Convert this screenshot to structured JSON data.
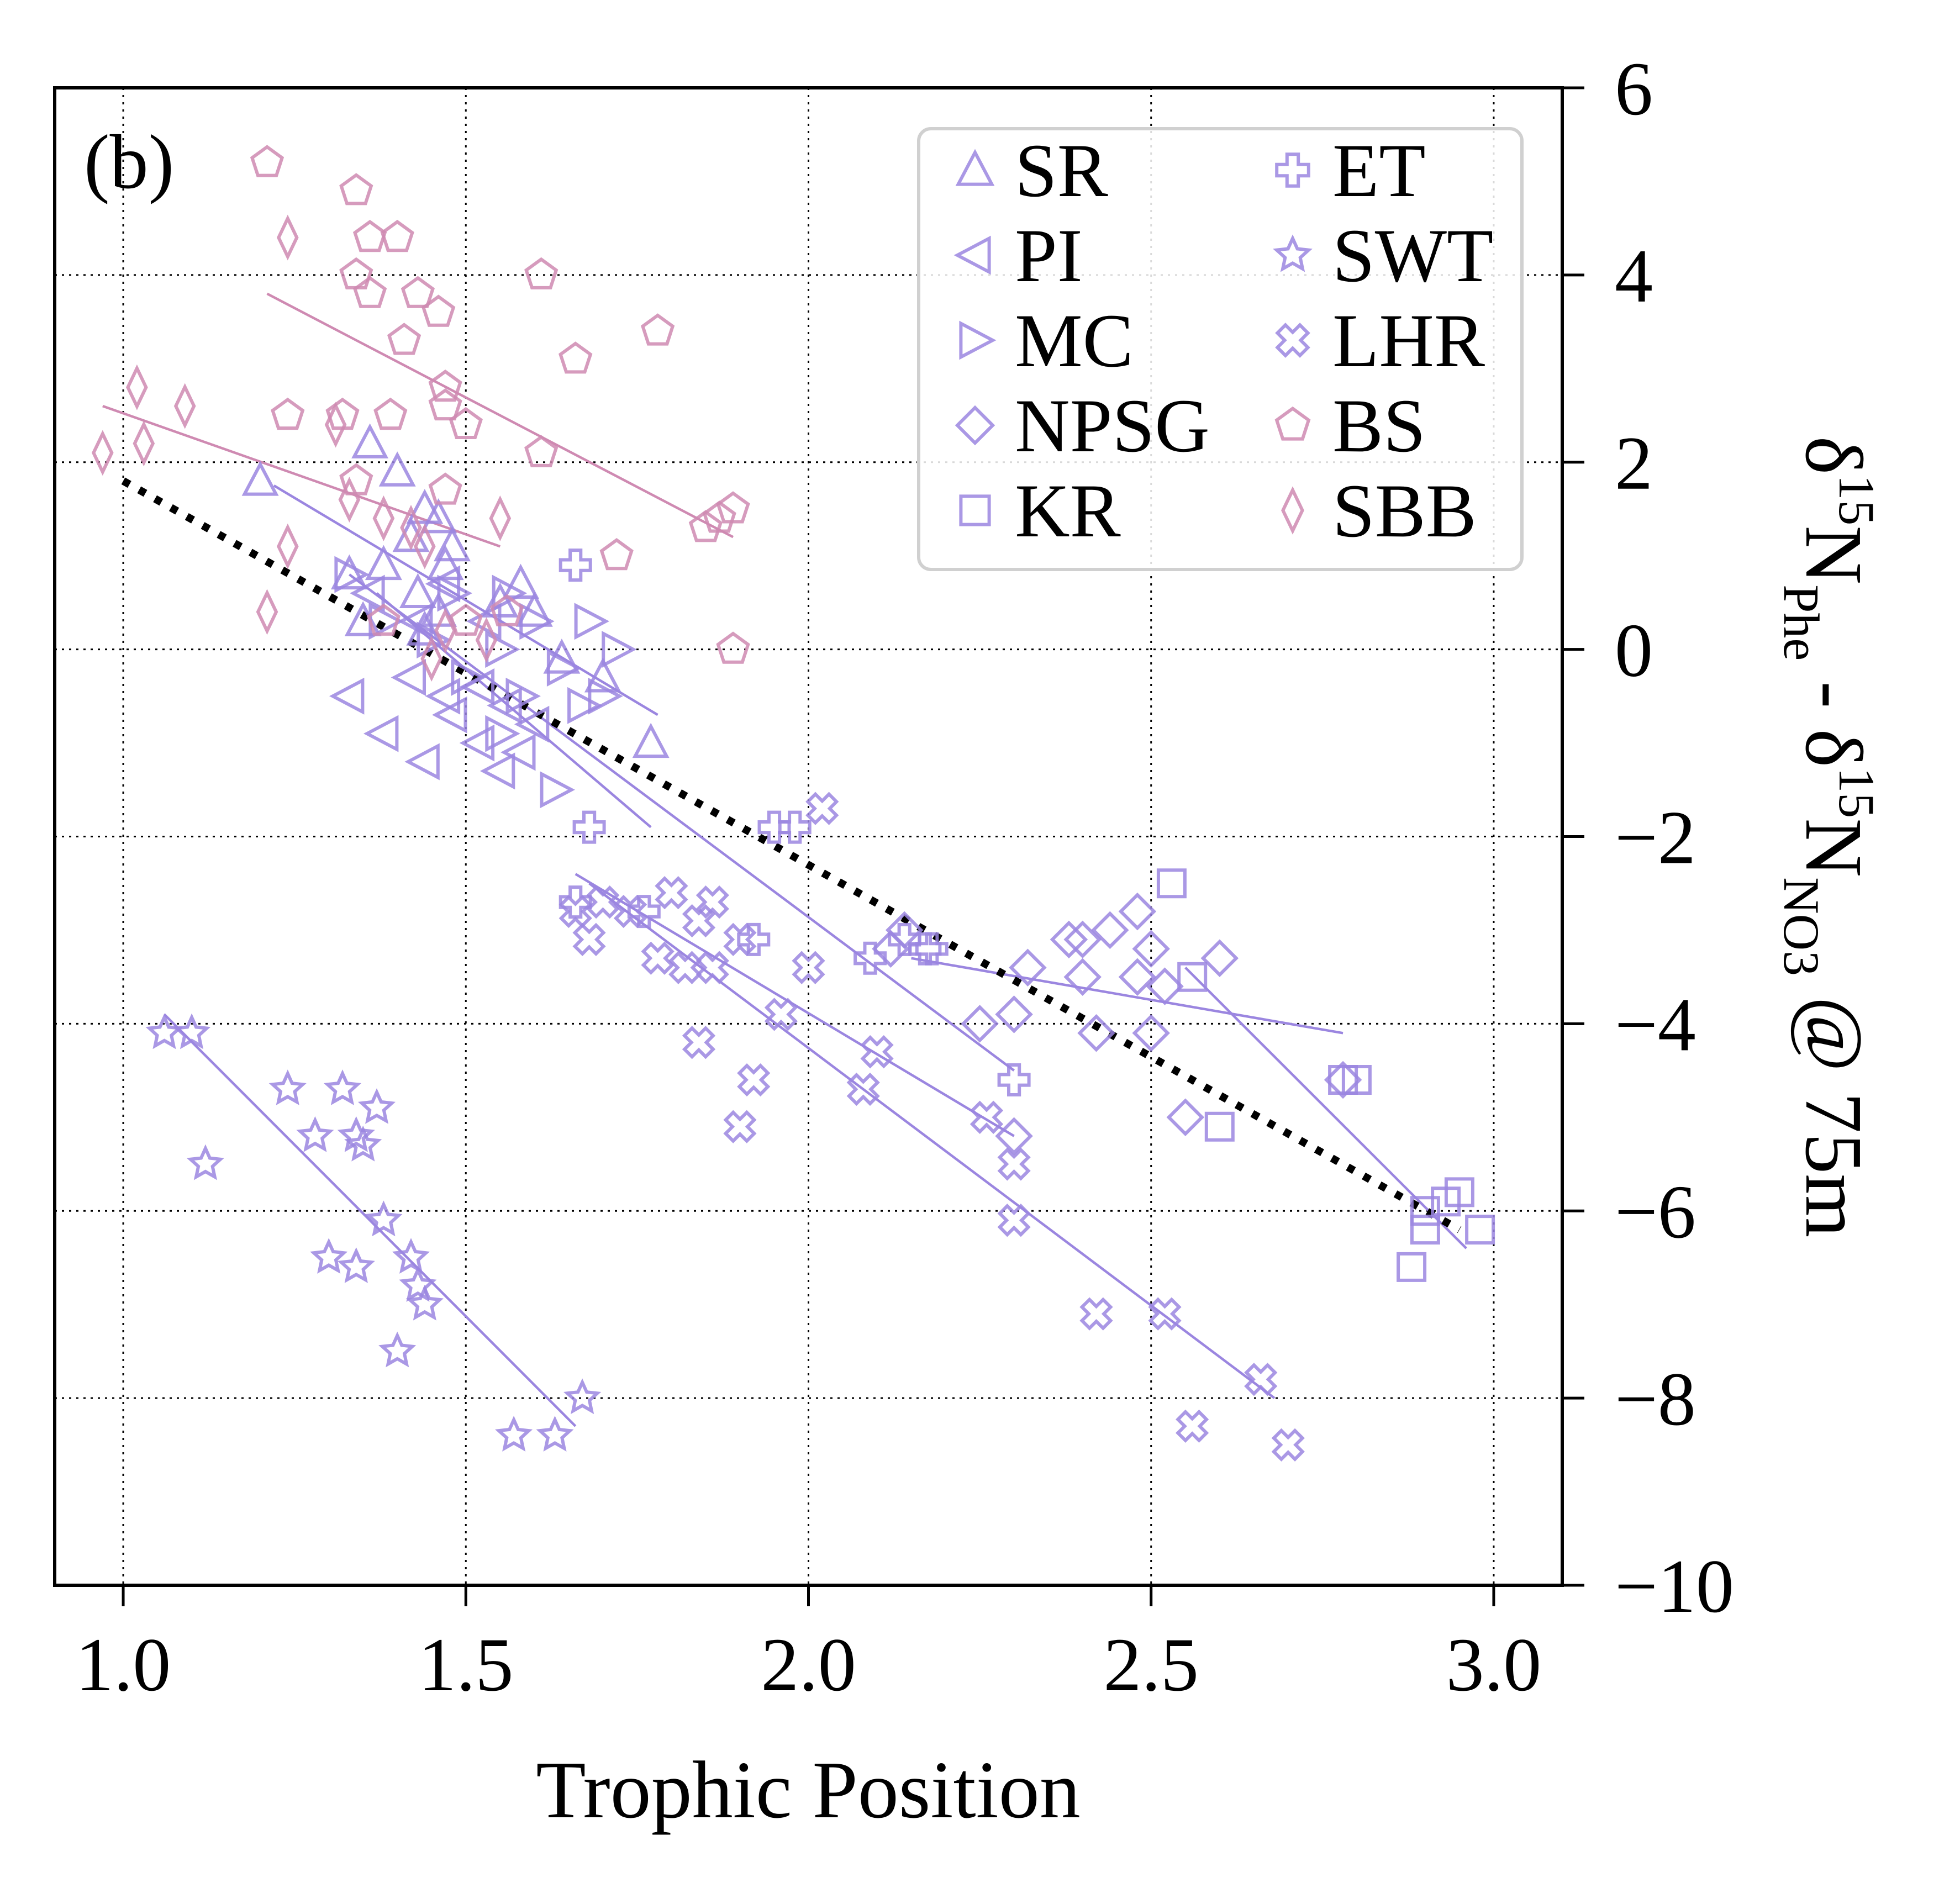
{
  "panel_label": "(b)",
  "chart_data": {
    "type": "scatter",
    "xlabel": "Trophic Position",
    "ylabel_parts": {
      "delta": "δ",
      "sup1": "15",
      "N1": "N",
      "sub1": "Phe",
      "minus": " - ",
      "sup2": "15",
      "N2": "N",
      "sub2": "NO3",
      "suffix": " @ 75m"
    },
    "xlim": [
      0.9,
      3.1
    ],
    "ylim": [
      -10,
      6
    ],
    "xticks": [
      "1.0",
      "1.5",
      "2.0",
      "2.5",
      "3.0"
    ],
    "yticks": [
      "6",
      "4",
      "2",
      "0",
      "−2",
      "−4",
      "−6",
      "−8",
      "−10"
    ],
    "grid": true,
    "legend_position": "top-right",
    "colors": {
      "purple": "#9b86e0",
      "pink": "#cf8ab2",
      "overall": "#000000"
    },
    "series": [
      {
        "name": "SR",
        "marker": "triangle-up",
        "color": "#9b86e0",
        "points": [
          [
            1.2,
            1.8
          ],
          [
            1.36,
            2.2
          ],
          [
            1.4,
            1.9
          ],
          [
            1.38,
            0.9
          ],
          [
            1.42,
            1.2
          ],
          [
            1.44,
            1.5
          ],
          [
            1.46,
            1.4
          ],
          [
            1.47,
            0.9
          ],
          [
            1.43,
            0.6
          ],
          [
            1.46,
            0.4
          ],
          [
            1.55,
            0.5
          ],
          [
            1.58,
            0.7
          ],
          [
            1.6,
            0.4
          ],
          [
            1.64,
            -0.1
          ],
          [
            1.7,
            -0.3
          ],
          [
            1.77,
            -1.0
          ],
          [
            1.33,
            0.8
          ],
          [
            1.35,
            0.3
          ],
          [
            1.44,
            0.2
          ],
          [
            1.48,
            1.1
          ]
        ],
        "fit": [
          [
            1.22,
            1.75
          ],
          [
            1.78,
            -0.7
          ]
        ]
      },
      {
        "name": "PI",
        "marker": "triangle-left",
        "color": "#9b86e0",
        "points": [
          [
            1.33,
            -0.5
          ],
          [
            1.38,
            -0.9
          ],
          [
            1.44,
            -1.2
          ],
          [
            1.48,
            -0.7
          ],
          [
            1.52,
            -1.0
          ],
          [
            1.42,
            -0.3
          ],
          [
            1.47,
            -0.5
          ],
          [
            1.52,
            -0.4
          ],
          [
            1.56,
            -0.6
          ],
          [
            1.6,
            -0.8
          ],
          [
            1.43,
            0.3
          ],
          [
            1.47,
            0.7
          ],
          [
            1.53,
            0.3
          ],
          [
            1.36,
            0.6
          ],
          [
            1.55,
            -1.3
          ],
          [
            1.58,
            -1.1
          ]
        ],
        "fit": [
          [
            1.37,
            0.6
          ],
          [
            1.77,
            -1.9
          ]
        ]
      },
      {
        "name": "MC",
        "marker": "triangle-right",
        "color": "#9b86e0",
        "points": [
          [
            1.33,
            0.8
          ],
          [
            1.38,
            0.3
          ],
          [
            1.45,
            0.1
          ],
          [
            1.5,
            -0.3
          ],
          [
            1.55,
            0.0
          ],
          [
            1.6,
            0.3
          ],
          [
            1.64,
            -0.2
          ],
          [
            1.68,
            0.3
          ],
          [
            1.67,
            -0.6
          ],
          [
            1.55,
            -0.9
          ],
          [
            1.63,
            -1.5
          ],
          [
            1.58,
            -0.5
          ],
          [
            1.48,
            0.6
          ],
          [
            1.56,
            0.6
          ],
          [
            1.7,
            -0.5
          ],
          [
            1.72,
            0.0
          ]
        ],
        "fit": [
          [
            1.33,
            0.8
          ],
          [
            2.3,
            -4.5
          ]
        ]
      },
      {
        "name": "NPSG",
        "marker": "circle",
        "color": "#9b86e0",
        "points": [
          [
            2.12,
            -3.2
          ],
          [
            2.14,
            -3.0
          ],
          [
            2.25,
            -4.0
          ],
          [
            2.3,
            -3.9
          ],
          [
            2.32,
            -3.4
          ],
          [
            2.38,
            -3.1
          ],
          [
            2.4,
            -3.1
          ],
          [
            2.44,
            -3.0
          ],
          [
            2.4,
            -3.5
          ],
          [
            2.42,
            -4.1
          ],
          [
            2.48,
            -2.8
          ],
          [
            2.48,
            -3.5
          ],
          [
            2.5,
            -3.2
          ],
          [
            2.5,
            -4.1
          ],
          [
            2.6,
            -3.3
          ],
          [
            2.52,
            -3.6
          ],
          [
            2.55,
            -5.0
          ],
          [
            2.3,
            -5.2
          ],
          [
            2.78,
            -4.6
          ]
        ],
        "fit": [
          [
            2.15,
            -3.3
          ],
          [
            2.78,
            -4.1
          ]
        ]
      },
      {
        "name": "KR",
        "marker": "square",
        "color": "#9b86e0",
        "points": [
          [
            2.53,
            -2.5
          ],
          [
            2.56,
            -3.5
          ],
          [
            2.6,
            -5.1
          ],
          [
            2.78,
            -4.6
          ],
          [
            2.8,
            -4.6
          ],
          [
            2.88,
            -6.6
          ],
          [
            2.9,
            -6.0
          ],
          [
            2.93,
            -5.9
          ],
          [
            2.95,
            -5.8
          ],
          [
            2.98,
            -6.2
          ],
          [
            2.9,
            -6.2
          ]
        ],
        "fit": [
          [
            2.55,
            -3.4
          ],
          [
            2.96,
            -6.4
          ]
        ]
      },
      {
        "name": "ET",
        "marker": "plus",
        "color": "#9b86e0",
        "points": [
          [
            1.66,
            0.9
          ],
          [
            1.68,
            -1.9
          ],
          [
            1.66,
            -2.7
          ],
          [
            1.76,
            -2.8
          ],
          [
            1.92,
            -3.1
          ],
          [
            1.98,
            -1.9
          ],
          [
            2.09,
            -3.3
          ],
          [
            2.14,
            -3.1
          ],
          [
            2.17,
            -3.2
          ],
          [
            2.3,
            -4.6
          ],
          [
            2.18,
            -3.2
          ],
          [
            1.95,
            -1.9
          ]
        ],
        "fit": [
          [
            1.66,
            -2.4
          ],
          [
            2.3,
            -5.2
          ]
        ]
      },
      {
        "name": "SWT",
        "marker": "star",
        "color": "#9b86e0",
        "points": [
          [
            1.06,
            -4.1
          ],
          [
            1.1,
            -4.1
          ],
          [
            1.12,
            -5.5
          ],
          [
            1.24,
            -4.7
          ],
          [
            1.28,
            -5.2
          ],
          [
            1.32,
            -4.7
          ],
          [
            1.34,
            -5.2
          ],
          [
            1.35,
            -5.3
          ],
          [
            1.37,
            -4.9
          ],
          [
            1.38,
            -6.1
          ],
          [
            1.3,
            -6.5
          ],
          [
            1.34,
            -6.6
          ],
          [
            1.4,
            -7.5
          ],
          [
            1.42,
            -6.5
          ],
          [
            1.43,
            -6.8
          ],
          [
            1.44,
            -7.0
          ],
          [
            1.57,
            -8.4
          ],
          [
            1.63,
            -8.4
          ],
          [
            1.67,
            -8.0
          ]
        ],
        "fit": [
          [
            1.06,
            -3.9
          ],
          [
            1.66,
            -8.3
          ]
        ]
      },
      {
        "name": "LHR",
        "marker": "x-cross",
        "color": "#9b86e0",
        "points": [
          [
            1.66,
            -2.8
          ],
          [
            1.68,
            -3.1
          ],
          [
            1.7,
            -2.7
          ],
          [
            1.74,
            -2.8
          ],
          [
            1.8,
            -2.6
          ],
          [
            1.86,
            -2.7
          ],
          [
            1.84,
            -2.9
          ],
          [
            1.78,
            -3.3
          ],
          [
            1.82,
            -3.4
          ],
          [
            1.86,
            -3.4
          ],
          [
            1.9,
            -3.1
          ],
          [
            1.84,
            -4.2
          ],
          [
            1.92,
            -4.6
          ],
          [
            1.9,
            -5.1
          ],
          [
            1.96,
            -3.9
          ],
          [
            2.0,
            -3.4
          ],
          [
            2.02,
            -1.7
          ],
          [
            2.1,
            -4.3
          ],
          [
            2.08,
            -4.7
          ],
          [
            2.26,
            -5.0
          ],
          [
            2.3,
            -5.5
          ],
          [
            2.3,
            -6.1
          ],
          [
            2.42,
            -7.1
          ],
          [
            2.52,
            -7.1
          ],
          [
            2.56,
            -8.3
          ],
          [
            2.66,
            -7.8
          ],
          [
            2.7,
            -8.5
          ]
        ],
        "fit": [
          [
            1.68,
            -2.5
          ],
          [
            2.68,
            -8.0
          ]
        ]
      },
      {
        "name": "BS",
        "marker": "pentagon",
        "color": "#cf8ab2",
        "points": [
          [
            1.21,
            5.2
          ],
          [
            1.34,
            4.9
          ],
          [
            1.36,
            4.4
          ],
          [
            1.4,
            4.4
          ],
          [
            1.34,
            4.0
          ],
          [
            1.36,
            3.8
          ],
          [
            1.43,
            3.8
          ],
          [
            1.46,
            3.6
          ],
          [
            1.41,
            3.3
          ],
          [
            1.61,
            4.0
          ],
          [
            1.66,
            3.1
          ],
          [
            1.78,
            3.4
          ],
          [
            1.24,
            2.5
          ],
          [
            1.32,
            2.5
          ],
          [
            1.39,
            2.5
          ],
          [
            1.47,
            2.6
          ],
          [
            1.47,
            2.8
          ],
          [
            1.5,
            2.4
          ],
          [
            1.61,
            2.1
          ],
          [
            1.34,
            1.8
          ],
          [
            1.47,
            1.7
          ],
          [
            1.72,
            1.0
          ],
          [
            1.85,
            1.3
          ],
          [
            1.87,
            1.4
          ],
          [
            1.89,
            1.5
          ],
          [
            1.89,
            0.0
          ],
          [
            1.38,
            0.3
          ],
          [
            1.5,
            0.3
          ],
          [
            1.56,
            0.4
          ]
        ],
        "fit": [
          [
            1.21,
            3.8
          ],
          [
            1.89,
            1.2
          ]
        ]
      },
      {
        "name": "SBB",
        "marker": "diamond",
        "color": "#cf8ab2",
        "points": [
          [
            0.97,
            2.1
          ],
          [
            1.02,
            2.8
          ],
          [
            1.03,
            2.2
          ],
          [
            1.09,
            2.6
          ],
          [
            1.24,
            4.4
          ],
          [
            1.21,
            0.4
          ],
          [
            1.24,
            1.1
          ],
          [
            1.31,
            2.4
          ],
          [
            1.33,
            1.6
          ],
          [
            1.38,
            1.4
          ],
          [
            1.42,
            1.3
          ],
          [
            1.44,
            1.1
          ],
          [
            1.55,
            1.4
          ],
          [
            1.47,
            0.2
          ],
          [
            1.53,
            0.1
          ],
          [
            1.45,
            -0.1
          ]
        ],
        "fit": [
          [
            0.97,
            2.6
          ],
          [
            1.55,
            1.1
          ]
        ]
      }
    ],
    "overall_fit": [
      [
        1.0,
        1.8
      ],
      [
        2.95,
        -6.2
      ]
    ]
  }
}
